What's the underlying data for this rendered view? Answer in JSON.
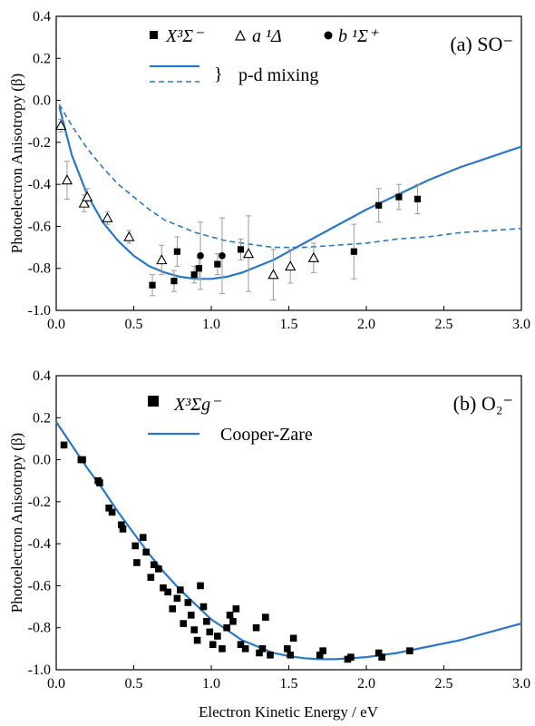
{
  "figure": {
    "xlabel": "Electron Kinetic Energy / eV",
    "colors": {
      "curve": "#2878c8",
      "marker": "#000000",
      "errorbar": "#9a9a9a",
      "axis": "#000000"
    }
  },
  "chart_data": [
    {
      "type": "scatter",
      "panel_label": "(a) SO⁻",
      "ylabel": "Photoelectron Anisotropy (β)",
      "xlim": [
        0,
        3.0
      ],
      "ylim": [
        -1.0,
        0.4
      ],
      "xticks": [
        "0.0",
        "0.5",
        "1.0",
        "1.5",
        "2.0",
        "2.5",
        "3.0"
      ],
      "yticks": [
        "0.4",
        "0.2",
        "0.0",
        "-0.2",
        "-0.4",
        "-0.6",
        "-0.8",
        "-1.0"
      ],
      "legend": {
        "items": [
          {
            "marker": "square",
            "label": "X³Σ⁻"
          },
          {
            "marker": "triangle-open",
            "label": "a ¹Δ"
          },
          {
            "marker": "circle",
            "label": "b ¹Σ⁺"
          }
        ],
        "brace": "}",
        "brace_label": "p-d mixing"
      },
      "series": [
        {
          "marker": "square",
          "x": [
            0.62,
            0.76,
            0.78,
            0.89,
            0.92,
            1.04,
            1.19,
            1.92,
            2.08,
            2.21,
            2.33
          ],
          "y": [
            -0.88,
            -0.86,
            -0.72,
            -0.83,
            -0.8,
            -0.78,
            -0.71,
            -0.72,
            -0.5,
            -0.46,
            -0.47
          ],
          "err": [
            0.05,
            0.05,
            0.07,
            0.04,
            0.05,
            0.05,
            0.05,
            0.13,
            0.08,
            0.06,
            0.07
          ]
        },
        {
          "marker": "triangle-open",
          "x": [
            0.03,
            0.07,
            0.18,
            0.2,
            0.33,
            0.47,
            0.68,
            1.24,
            1.4,
            1.51,
            1.66
          ],
          "y": [
            -0.12,
            -0.38,
            -0.49,
            -0.46,
            -0.56,
            -0.65,
            -0.76,
            -0.73,
            -0.83,
            -0.79,
            -0.75
          ],
          "err": [
            0.03,
            0.09,
            0.04,
            0.04,
            0.03,
            0.03,
            0.07,
            0.18,
            0.12,
            0.08,
            0.07
          ]
        },
        {
          "marker": "circle",
          "x": [
            0.93,
            1.07
          ],
          "y": [
            -0.74,
            -0.74
          ],
          "err": [
            0.16,
            0.18
          ]
        }
      ],
      "curves": [
        {
          "style": "solid",
          "x": [
            0.02,
            0.1,
            0.2,
            0.3,
            0.4,
            0.5,
            0.6,
            0.7,
            0.8,
            0.9,
            1.0,
            1.1,
            1.2,
            1.3,
            1.4,
            1.5,
            1.6,
            1.8,
            2.0,
            2.2,
            2.4,
            2.6,
            2.8,
            3.0
          ],
          "y": [
            -0.03,
            -0.26,
            -0.45,
            -0.58,
            -0.67,
            -0.74,
            -0.79,
            -0.82,
            -0.84,
            -0.85,
            -0.85,
            -0.84,
            -0.82,
            -0.79,
            -0.76,
            -0.72,
            -0.68,
            -0.6,
            -0.52,
            -0.45,
            -0.38,
            -0.32,
            -0.27,
            -0.22
          ]
        },
        {
          "style": "dashed",
          "x": [
            0.02,
            0.1,
            0.2,
            0.3,
            0.4,
            0.5,
            0.6,
            0.7,
            0.8,
            0.9,
            1.0,
            1.1,
            1.2,
            1.3,
            1.4,
            1.5,
            1.6,
            1.8,
            2.0,
            2.2,
            2.4,
            2.6,
            2.8,
            3.0
          ],
          "y": [
            -0.02,
            -0.12,
            -0.23,
            -0.32,
            -0.4,
            -0.46,
            -0.52,
            -0.57,
            -0.6,
            -0.63,
            -0.65,
            -0.67,
            -0.68,
            -0.69,
            -0.7,
            -0.7,
            -0.7,
            -0.69,
            -0.68,
            -0.66,
            -0.65,
            -0.63,
            -0.62,
            -0.61
          ]
        }
      ]
    },
    {
      "type": "scatter",
      "panel_label": "(b) O₂⁻",
      "ylabel": "Photoelectron Anisotropy (β)",
      "xlabel": "Electron Kinetic Energy / eV",
      "xlim": [
        0,
        3.0
      ],
      "ylim": [
        -1.0,
        0.4
      ],
      "xticks": [
        "0.0",
        "0.5",
        "1.0",
        "1.5",
        "2.0",
        "2.5",
        "3.0"
      ],
      "yticks": [
        "0.4",
        "0.2",
        "0.0",
        "-0.2",
        "-0.4",
        "-0.6",
        "-0.8",
        "-1.0"
      ],
      "legend": {
        "items": [
          {
            "marker": "square",
            "label": "X³Σg⁻"
          },
          {
            "marker": "line",
            "label": "Cooper-Zare"
          }
        ]
      },
      "series": [
        {
          "marker": "square",
          "x": [
            0.05,
            0.16,
            0.17,
            0.27,
            0.28,
            0.34,
            0.36,
            0.42,
            0.43,
            0.51,
            0.52,
            0.56,
            0.58,
            0.61,
            0.63,
            0.66,
            0.69,
            0.72,
            0.75,
            0.78,
            0.8,
            0.82,
            0.85,
            0.87,
            0.89,
            0.91,
            0.93,
            0.95,
            0.97,
            0.99,
            1.01,
            1.04,
            1.07,
            1.1,
            1.12,
            1.14,
            1.16,
            1.19,
            1.22,
            1.29,
            1.31,
            1.33,
            1.35,
            1.38,
            1.49,
            1.51,
            1.53,
            1.7,
            1.72,
            1.88,
            1.9,
            2.08,
            2.1,
            2.28
          ],
          "y": [
            0.07,
            0.0,
            0.0,
            -0.1,
            -0.11,
            -0.23,
            -0.25,
            -0.31,
            -0.33,
            -0.41,
            -0.49,
            -0.37,
            -0.44,
            -0.56,
            -0.5,
            -0.52,
            -0.61,
            -0.63,
            -0.71,
            -0.66,
            -0.62,
            -0.78,
            -0.68,
            -0.74,
            -0.81,
            -0.86,
            -0.6,
            -0.7,
            -0.77,
            -0.82,
            -0.88,
            -0.84,
            -0.9,
            -0.8,
            -0.74,
            -0.77,
            -0.71,
            -0.88,
            -0.9,
            -0.8,
            -0.92,
            -0.9,
            -0.75,
            -0.93,
            -0.9,
            -0.93,
            -0.85,
            -0.93,
            -0.91,
            -0.95,
            -0.94,
            -0.92,
            -0.94,
            -0.91
          ]
        }
      ],
      "curves": [
        {
          "style": "solid",
          "x": [
            0.0,
            0.1,
            0.2,
            0.3,
            0.4,
            0.5,
            0.6,
            0.7,
            0.8,
            0.9,
            1.0,
            1.1,
            1.2,
            1.3,
            1.4,
            1.5,
            1.6,
            1.7,
            1.8,
            1.9,
            2.0,
            2.2,
            2.4,
            2.6,
            2.8,
            3.0
          ],
          "y": [
            0.18,
            0.07,
            -0.04,
            -0.14,
            -0.25,
            -0.35,
            -0.45,
            -0.54,
            -0.62,
            -0.69,
            -0.76,
            -0.81,
            -0.86,
            -0.89,
            -0.92,
            -0.935,
            -0.945,
            -0.95,
            -0.95,
            -0.945,
            -0.94,
            -0.92,
            -0.89,
            -0.86,
            -0.82,
            -0.78
          ]
        }
      ]
    }
  ]
}
